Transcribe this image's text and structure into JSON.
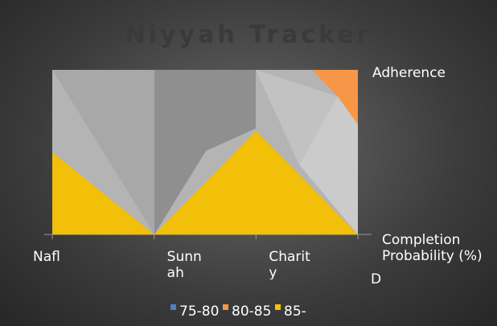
{
  "chart_data": {
    "type": "surface",
    "title": "Niyyah Tracker",
    "categories": [
      "Nafl",
      "Sunnah",
      "Charity",
      "D"
    ],
    "series": [
      {
        "name": "85-",
        "color": "#f5c000",
        "values": [
          50,
          0,
          63,
          0
        ]
      }
    ],
    "ylim": [
      0,
      100
    ],
    "axis_labels": {
      "depth": "Adherence",
      "value": "Completion Probability (%)"
    },
    "legend": [
      {
        "name": "75-80",
        "color": "#4f81bd"
      },
      {
        "name": "80-85",
        "color": "#f79646"
      },
      {
        "name": "85-",
        "color": "#ffc000"
      }
    ]
  }
}
